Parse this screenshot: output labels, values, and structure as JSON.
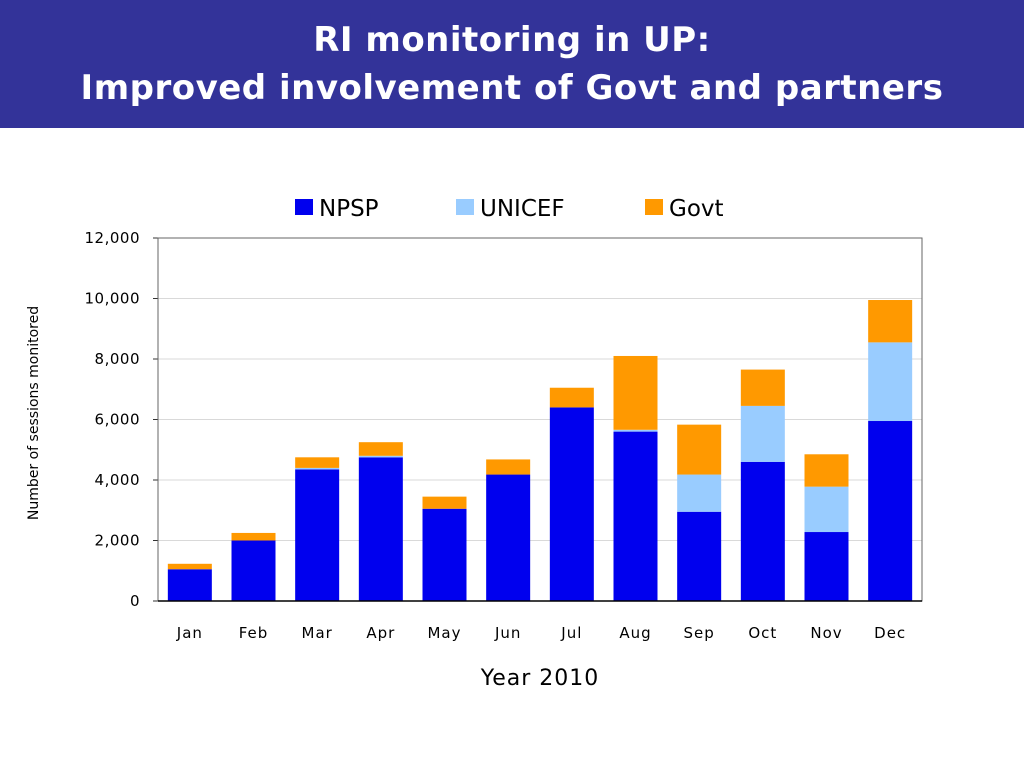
{
  "slide": {
    "title_line1": "RI monitoring in UP:",
    "title_line2": "Improved involvement of Govt and partners"
  },
  "chart_data": {
    "type": "bar",
    "stacked": true,
    "categories": [
      "Jan",
      "Feb",
      "Mar",
      "Apr",
      "May",
      "Jun",
      "Jul",
      "Aug",
      "Sep",
      "Oct",
      "Nov",
      "Dec"
    ],
    "series": [
      {
        "name": "NPSP",
        "color": "#0000ee",
        "values": [
          1050,
          2000,
          4350,
          4750,
          3050,
          4180,
          6400,
          5600,
          2950,
          4600,
          2280,
          5950
        ]
      },
      {
        "name": "UNICEF",
        "color": "#99ccff",
        "values": [
          0,
          0,
          50,
          50,
          0,
          0,
          0,
          60,
          1230,
          1850,
          1500,
          2600
        ]
      },
      {
        "name": "Govt",
        "color": "#ff9900",
        "values": [
          180,
          250,
          350,
          450,
          400,
          500,
          650,
          2440,
          1650,
          1200,
          1070,
          1400
        ]
      }
    ],
    "xlabel": "Year 2010",
    "ylabel": "Number of sessions monitored",
    "ylim": [
      0,
      12000
    ],
    "yticks": [
      "0",
      "2,000",
      "4,000",
      "6,000",
      "8,000",
      "10,000",
      "12,000"
    ],
    "grid": true,
    "legend": "top"
  }
}
